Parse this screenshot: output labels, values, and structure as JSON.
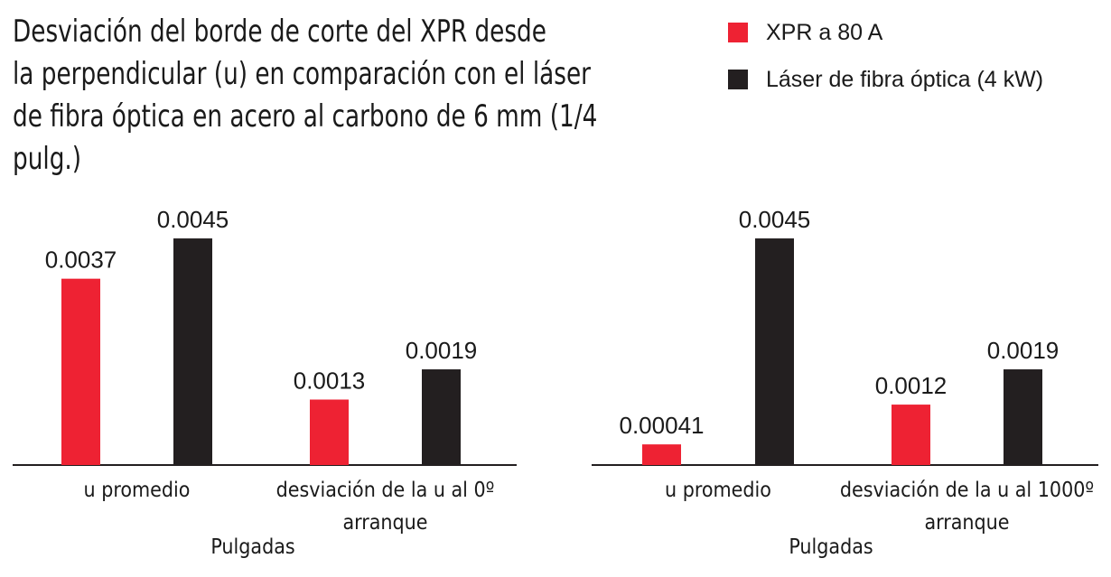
{
  "title_lines": [
    "Desviación del borde de corte del XPR desde",
    "la perpendicular (u) en comparación con el láser",
    "de fibra óptica en acero al carbono de 6 mm (1/4 pulg.)"
  ],
  "legend": [
    {
      "label": "XPR a 80 A",
      "color": "#ee2233"
    },
    {
      "label": "Láser de fibra óptica (4 kW)",
      "color": "#231f20"
    }
  ],
  "chart_data": [
    {
      "type": "bar",
      "categories": [
        [
          "u promedio"
        ],
        [
          "desviación de la u al 0º",
          "arranque"
        ]
      ],
      "series": [
        {
          "name": "XPR a 80 A",
          "color": "#ee2233",
          "values": [
            0.0037,
            0.0013
          ],
          "labels": [
            "0.0037",
            "0.0013"
          ]
        },
        {
          "name": "Láser de fibra óptica (4 kW)",
          "color": "#231f20",
          "values": [
            0.0045,
            0.0019
          ],
          "labels": [
            "0.0045",
            "0.0019"
          ]
        }
      ],
      "ylabel": "Pulgadas",
      "ylim": [
        0,
        0.0052
      ]
    },
    {
      "type": "bar",
      "categories": [
        [
          "u promedio"
        ],
        [
          "desviación de la u al 1000º",
          "arranque"
        ]
      ],
      "series": [
        {
          "name": "XPR a 80 A",
          "color": "#ee2233",
          "values": [
            0.00041,
            0.0012
          ],
          "labels": [
            "0.00041",
            "0.0012"
          ]
        },
        {
          "name": "Láser de fibra óptica (4 kW)",
          "color": "#231f20",
          "values": [
            0.0045,
            0.0019
          ],
          "labels": [
            "0.0045",
            "0.0019"
          ]
        }
      ],
      "ylabel": "Pulgadas",
      "ylim": [
        0,
        0.0052
      ]
    }
  ]
}
